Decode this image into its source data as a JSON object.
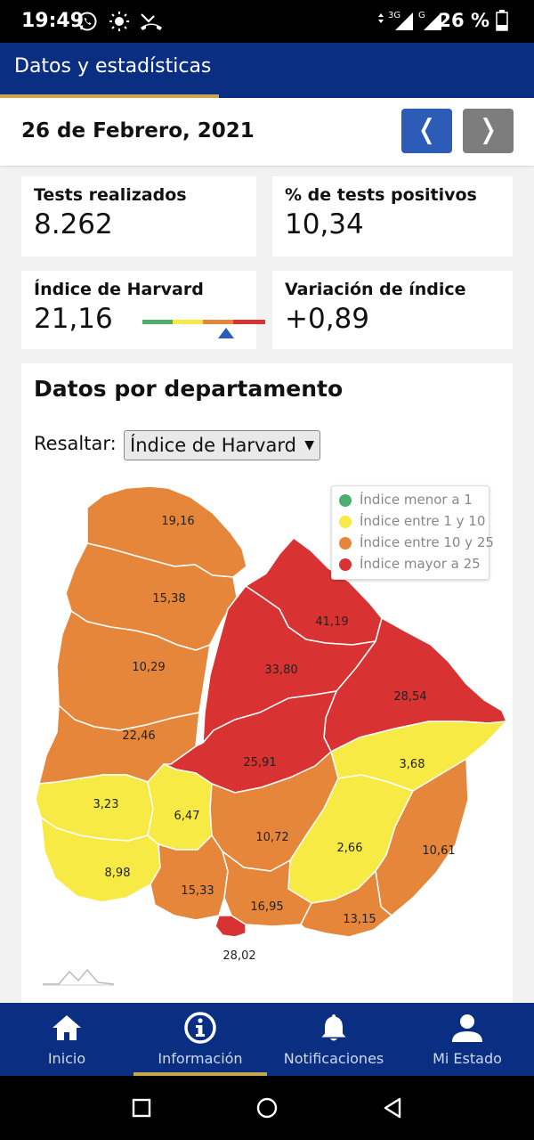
{
  "status_bar": {
    "time": "19:49",
    "network_type": "3G",
    "signal_label": "G",
    "battery_percent": "26 %"
  },
  "app_bar": {
    "title": "Datos y estadísticas"
  },
  "date_row": {
    "date": "26 de Febrero, 2021",
    "prev_symbol": "❬",
    "next_symbol": "❭"
  },
  "stats": {
    "tests": {
      "label": "Tests realizados",
      "value": "8.262"
    },
    "positive": {
      "label": "% de tests positivos",
      "value": "10,34"
    },
    "harvard": {
      "label": "Índice de Harvard",
      "value": "21,16",
      "scale_level": 0.68
    },
    "variation": {
      "label": "Variación de índice",
      "value": "+0,89"
    }
  },
  "department": {
    "heading": "Datos por departamento",
    "highlight_label": "Resaltar:",
    "highlight_selected": "Índice de Harvard",
    "legend": [
      {
        "label": "Índice menor a 1",
        "color": "#4caf6e"
      },
      {
        "label": "Índice entre 1 y 10",
        "color": "#f7ea45"
      },
      {
        "label": "Índice entre 10 y 25",
        "color": "#e6863a"
      },
      {
        "label": "Índice mayor a 25",
        "color": "#d93232"
      }
    ],
    "values": {
      "artigas": "19,16",
      "salto": "15,38",
      "rivera": "41,19",
      "paysandu": "10,29",
      "tacuarembo": "33,80",
      "cerro_largo": "28,54",
      "rio_negro": "22,46",
      "durazno": "25,91",
      "treinta_y_tres": "3,68",
      "soriano": "3,23",
      "flores": "6,47",
      "florida": "10,72",
      "lavalleja": "2,66",
      "rocha": "10,61",
      "colonia": "8,98",
      "san_jose": "15,33",
      "canelones": "16,95",
      "maldonado": "13,15",
      "montevideo": "28,02"
    }
  },
  "bottom_nav": {
    "items": [
      {
        "label": "Inicio",
        "icon": "home-icon"
      },
      {
        "label": "Información",
        "icon": "info-icon"
      },
      {
        "label": "Notificaciones",
        "icon": "bell-icon"
      },
      {
        "label": "Mi Estado",
        "icon": "person-icon"
      }
    ],
    "active_index": 1
  },
  "colors": {
    "primary": "#0a2f82",
    "accent": "#c9a64a",
    "orange": "#e6863a",
    "red": "#d93232",
    "yellow": "#f7ea45"
  }
}
